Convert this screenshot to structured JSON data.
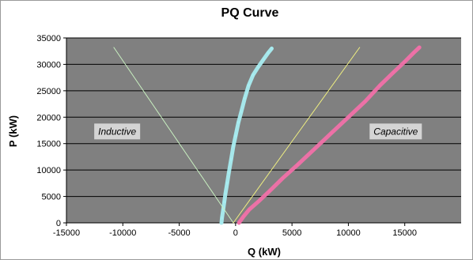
{
  "chart_data": {
    "type": "scatter",
    "title": "PQ Curve",
    "xlabel": "Q (kW)",
    "ylabel": "P (kW)",
    "xlim": [
      -15000,
      20000
    ],
    "ylim": [
      0,
      35000
    ],
    "x_ticks": [
      "-15000",
      "-10000",
      "-5000",
      "0",
      "5000",
      "10000",
      "15000"
    ],
    "y_ticks": [
      "0",
      "5000",
      "10000",
      "15000",
      "20000",
      "25000",
      "30000",
      "35000"
    ],
    "grid": "horizontal",
    "plot_background": "#808080",
    "annotations": [
      {
        "text": "Inductive",
        "x": -10500,
        "y": 17300
      },
      {
        "text": "Capacitive",
        "x": 14200,
        "y": 17300
      }
    ],
    "series": [
      {
        "color": "#a8ecf0",
        "points": [
          [
            -1250,
            0
          ],
          [
            -1200,
            1000
          ],
          [
            -1100,
            2500
          ],
          [
            -1000,
            4000
          ],
          [
            -900,
            5500
          ],
          [
            -750,
            7500
          ],
          [
            -600,
            9500
          ],
          [
            -400,
            12000
          ],
          [
            -200,
            14500
          ],
          [
            0,
            16500
          ],
          [
            250,
            19000
          ],
          [
            500,
            21000
          ],
          [
            800,
            23500
          ],
          [
            1150,
            26000
          ],
          [
            1550,
            28000
          ],
          [
            2000,
            29500
          ],
          [
            2500,
            31000
          ],
          [
            2900,
            32200
          ],
          [
            3200,
            33000
          ]
        ]
      },
      {
        "color": "#f070a8",
        "points": [
          [
            300,
            0
          ],
          [
            700,
            1200
          ],
          [
            1200,
            2500
          ],
          [
            2000,
            4000
          ],
          [
            3000,
            6000
          ],
          [
            4200,
            8500
          ],
          [
            5500,
            11000
          ],
          [
            7000,
            14000
          ],
          [
            8500,
            17000
          ],
          [
            10000,
            20000
          ],
          [
            11500,
            23000
          ],
          [
            12800,
            26000
          ],
          [
            14000,
            28500
          ],
          [
            15000,
            30500
          ],
          [
            15800,
            32200
          ],
          [
            16300,
            33200
          ]
        ]
      },
      {
        "color": "#c8f0c0",
        "points": [
          [
            -10800,
            33200
          ],
          [
            -200,
            0
          ]
        ]
      },
      {
        "color": "#f0f080",
        "points": [
          [
            -200,
            0
          ],
          [
            11000,
            33200
          ]
        ]
      }
    ]
  }
}
